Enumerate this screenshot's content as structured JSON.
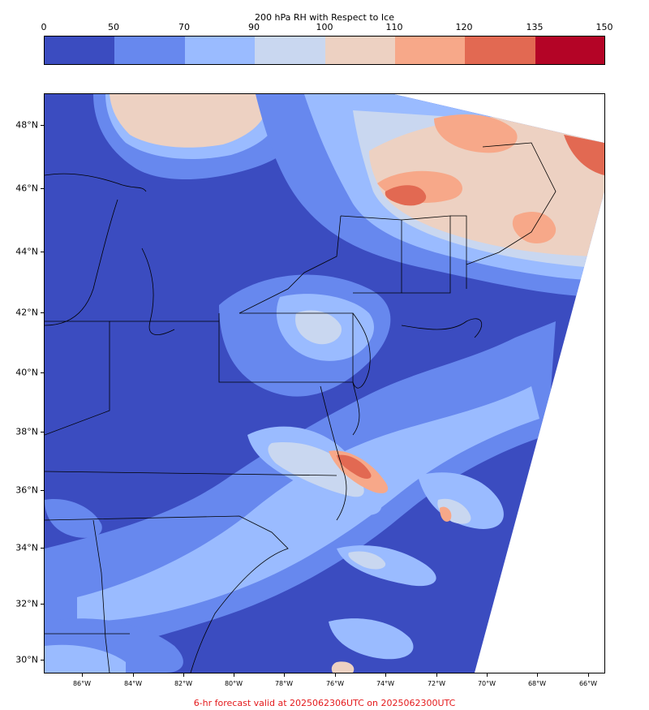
{
  "colorbar": {
    "title": "200 hPa RH with Respect to Ice",
    "ticks": [
      "0",
      "50",
      "70",
      "90",
      "100",
      "110",
      "120",
      "135",
      "150"
    ],
    "colors": [
      "#3b4cc0",
      "#6788ee",
      "#9abbff",
      "#c9d7f0",
      "#edd1c2",
      "#f7a889",
      "#e26952",
      "#b40426"
    ]
  },
  "map": {
    "lat_labels": [
      "48°N",
      "46°N",
      "44°N",
      "42°N",
      "40°N",
      "38°N",
      "36°N",
      "34°N",
      "32°N",
      "30°N"
    ],
    "lon_labels": [
      "86°W",
      "84°W",
      "82°W",
      "80°W",
      "78°W",
      "76°W",
      "74°W",
      "72°W",
      "70°W",
      "68°W",
      "66°W"
    ]
  },
  "footer": "6-hr forecast valid at 2025062306UTC on 2025062300UTC"
}
